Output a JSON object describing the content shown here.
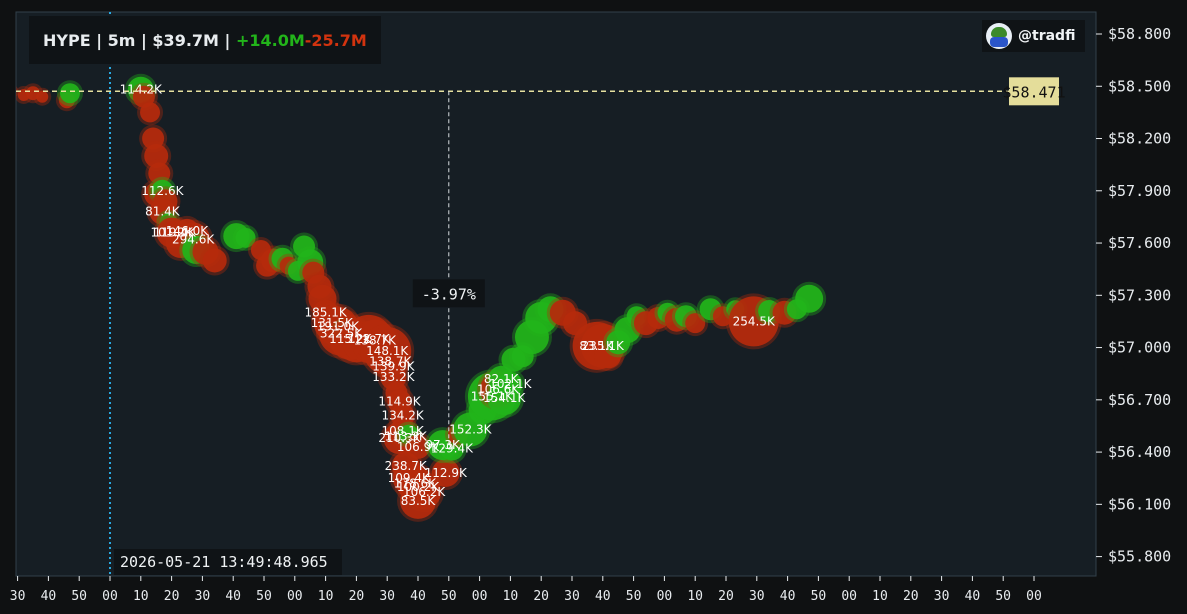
{
  "header": {
    "symbol": "HYPE",
    "sep1": " | ",
    "interval": "5m",
    "sep2": " | ",
    "volume": "$39.7M",
    "sep3": " | ",
    "buy_volume": "+14.0M",
    "sell_volume": "-25.7M"
  },
  "handle": "@tradfi",
  "colors": {
    "background": "#0f1112",
    "plot_background": "#161e24",
    "buy": "#22b41a",
    "sell": "#b52a0c",
    "price_line": "#e6e1a0",
    "price_badge": "#e4dd9a",
    "cursor_line": "#2aa8e0",
    "axis_text": "#e8ecef"
  },
  "chart_data": {
    "type": "scatter",
    "x_unit": "minute:second",
    "ylim": [
      55.8,
      58.9
    ],
    "y_ticks": [
      "$55.800",
      "$56.100",
      "$56.400",
      "$56.700",
      "$57.000",
      "$57.300",
      "$57.600",
      "$57.900",
      "$58.200",
      "$58.500",
      "$58.800"
    ],
    "y_tick_values": [
      55.8,
      56.1,
      56.4,
      56.7,
      57.0,
      57.3,
      57.6,
      57.9,
      58.2,
      58.5,
      58.8
    ],
    "x_ticks": [
      "20",
      "30",
      "40",
      "50",
      "00",
      "10",
      "20",
      "30",
      "40",
      "50",
      "00",
      "10",
      "20",
      "30",
      "40",
      "50",
      "00",
      "10",
      "20",
      "30",
      "40",
      "50",
      "00",
      "10",
      "20",
      "30",
      "40",
      "50",
      "00",
      "10",
      "20",
      "30",
      "40",
      "50",
      "00"
    ],
    "x_tick_start": -40,
    "x_tick_step": 10,
    "x_range_seconds": [
      -42,
      306
    ],
    "current_price": {
      "value": 58.471,
      "label": "$58.471"
    },
    "cursor": {
      "x": 0,
      "label": "2026-05-21 13:49:48.965"
    },
    "drawdown": {
      "x": 110,
      "y_from": 58.471,
      "label": "-3.97%",
      "label_y": 57.3
    },
    "trades": [
      {
        "t": -40,
        "p": 58.48,
        "side": "sell",
        "s": 4
      },
      {
        "t": -36,
        "p": 58.47,
        "side": "sell",
        "s": 5
      },
      {
        "t": -32,
        "p": 58.47,
        "side": "sell",
        "s": 4
      },
      {
        "t": -28,
        "p": 58.45,
        "side": "sell",
        "s": 6
      },
      {
        "t": -25,
        "p": 58.46,
        "side": "sell",
        "s": 7
      },
      {
        "t": -22,
        "p": 58.44,
        "side": "sell",
        "s": 6
      },
      {
        "t": -14,
        "p": 58.42,
        "side": "sell",
        "s": 8
      },
      {
        "t": -13,
        "p": 58.46,
        "side": "buy",
        "s": 10
      },
      {
        "t": 10,
        "p": 58.48,
        "side": "buy",
        "s": 13,
        "label": "114.2K"
      },
      {
        "t": 11,
        "p": 58.44,
        "side": "sell",
        "s": 11
      },
      {
        "t": 13,
        "p": 58.35,
        "side": "sell",
        "s": 10
      },
      {
        "t": 14,
        "p": 58.2,
        "side": "sell",
        "s": 11
      },
      {
        "t": 15,
        "p": 58.1,
        "side": "sell",
        "s": 12
      },
      {
        "t": 16,
        "p": 58.0,
        "side": "sell",
        "s": 11
      },
      {
        "t": 15,
        "p": 57.88,
        "side": "sell",
        "s": 12
      },
      {
        "t": 17,
        "p": 57.9,
        "side": "buy",
        "s": 11,
        "label": "112.6K"
      },
      {
        "t": 18,
        "p": 57.84,
        "side": "sell",
        "s": 12
      },
      {
        "t": 17,
        "p": 57.78,
        "side": "sell",
        "s": 13,
        "label": "81.4K"
      },
      {
        "t": 19,
        "p": 57.72,
        "side": "buy",
        "s": 9
      },
      {
        "t": 20,
        "p": 57.66,
        "side": "sell",
        "s": 15,
        "label": "101.2K"
      },
      {
        "t": 21,
        "p": 57.66,
        "side": "sell",
        "s": 12,
        "label": "119.4K"
      },
      {
        "t": 23,
        "p": 57.6,
        "side": "sell",
        "s": 15
      },
      {
        "t": 25,
        "p": 57.67,
        "side": "sell",
        "s": 12,
        "label": "146.0K"
      },
      {
        "t": 27,
        "p": 57.62,
        "side": "sell",
        "s": 17,
        "label": "294.6K"
      },
      {
        "t": 28,
        "p": 57.56,
        "side": "buy",
        "s": 14
      },
      {
        "t": 31,
        "p": 57.55,
        "side": "sell",
        "s": 13
      },
      {
        "t": 34,
        "p": 57.5,
        "side": "sell",
        "s": 12
      },
      {
        "t": 41,
        "p": 57.64,
        "side": "buy",
        "s": 13
      },
      {
        "t": 44,
        "p": 57.63,
        "side": "buy",
        "s": 10
      },
      {
        "t": 49,
        "p": 57.56,
        "side": "sell",
        "s": 10
      },
      {
        "t": 51,
        "p": 57.47,
        "side": "sell",
        "s": 11
      },
      {
        "t": 53,
        "p": 57.5,
        "side": "sell",
        "s": 12
      },
      {
        "t": 56,
        "p": 57.51,
        "side": "buy",
        "s": 11
      },
      {
        "t": 58,
        "p": 57.47,
        "side": "sell",
        "s": 9
      },
      {
        "t": 61,
        "p": 57.44,
        "side": "buy",
        "s": 10
      },
      {
        "t": 63,
        "p": 57.58,
        "side": "buy",
        "s": 11
      },
      {
        "t": 65,
        "p": 57.49,
        "side": "buy",
        "s": 13
      },
      {
        "t": 66,
        "p": 57.43,
        "side": "sell",
        "s": 11
      },
      {
        "t": 68,
        "p": 57.35,
        "side": "sell",
        "s": 12
      },
      {
        "t": 69,
        "p": 57.28,
        "side": "sell",
        "s": 14
      },
      {
        "t": 70,
        "p": 57.2,
        "side": "sell",
        "s": 13,
        "label": "185.1K"
      },
      {
        "t": 72,
        "p": 57.14,
        "side": "sell",
        "s": 18,
        "label": "131.5K"
      },
      {
        "t": 74,
        "p": 57.12,
        "side": "sell",
        "s": 20,
        "label": "191.0K"
      },
      {
        "t": 75,
        "p": 57.08,
        "side": "sell",
        "s": 22,
        "label": "322.5K"
      },
      {
        "t": 76,
        "p": 57.1,
        "side": "buy",
        "s": 9
      },
      {
        "t": 78,
        "p": 57.05,
        "side": "sell",
        "s": 21,
        "label": "115.2K"
      },
      {
        "t": 80,
        "p": 57.03,
        "side": "sell",
        "s": 20
      },
      {
        "t": 84,
        "p": 57.05,
        "side": "sell",
        "s": 24,
        "label": "122.7K"
      },
      {
        "t": 86,
        "p": 57.04,
        "side": "sell",
        "s": 21,
        "label": "138.7K"
      },
      {
        "t": 90,
        "p": 56.98,
        "side": "sell",
        "s": 24,
        "label": "148.1K"
      },
      {
        "t": 91,
        "p": 56.92,
        "side": "sell",
        "s": 16,
        "label": "138.7K"
      },
      {
        "t": 92,
        "p": 56.89,
        "side": "sell",
        "s": 12,
        "label": "139.9K"
      },
      {
        "t": 92,
        "p": 56.83,
        "side": "sell",
        "s": 13,
        "label": "133.2K"
      },
      {
        "t": 93,
        "p": 56.74,
        "side": "sell",
        "s": 11
      },
      {
        "t": 94,
        "p": 56.69,
        "side": "sell",
        "s": 12,
        "label": "114.9K"
      },
      {
        "t": 95,
        "p": 56.61,
        "side": "sell",
        "s": 12,
        "label": "134.2K"
      },
      {
        "t": 95,
        "p": 56.52,
        "side": "sell",
        "s": 13,
        "label": "108.1K"
      },
      {
        "t": 94,
        "p": 56.48,
        "side": "sell",
        "s": 16,
        "label": "210.3K"
      },
      {
        "t": 96,
        "p": 56.49,
        "side": "sell",
        "s": 13,
        "label": "113.3K"
      },
      {
        "t": 97,
        "p": 56.5,
        "side": "buy",
        "s": 10
      },
      {
        "t": 100,
        "p": 56.43,
        "side": "sell",
        "s": 12,
        "label": "106.9K"
      },
      {
        "t": 96,
        "p": 56.32,
        "side": "sell",
        "s": 14,
        "label": "238.7K"
      },
      {
        "t": 97,
        "p": 56.25,
        "side": "sell",
        "s": 16,
        "label": "109.4K"
      },
      {
        "t": 99,
        "p": 56.22,
        "side": "sell",
        "s": 18,
        "label": "178.6K"
      },
      {
        "t": 100,
        "p": 56.2,
        "side": "sell",
        "s": 16,
        "label": "100.2K"
      },
      {
        "t": 102,
        "p": 56.17,
        "side": "sell",
        "s": 17,
        "label": "106.2K"
      },
      {
        "t": 100,
        "p": 56.12,
        "side": "sell",
        "s": 18,
        "label": "83.5K"
      },
      {
        "t": 109,
        "p": 56.28,
        "side": "sell",
        "s": 14,
        "label": "112.9K"
      },
      {
        "t": 108,
        "p": 56.44,
        "side": "buy",
        "s": 15,
        "label": "97.3K"
      },
      {
        "t": 111,
        "p": 56.42,
        "side": "buy",
        "s": 12,
        "label": "129.4K"
      },
      {
        "t": 113,
        "p": 56.5,
        "side": "sell",
        "s": 10
      },
      {
        "t": 117,
        "p": 56.53,
        "side": "buy",
        "s": 17,
        "label": "152.3K"
      },
      {
        "t": 121,
        "p": 56.64,
        "side": "buy",
        "s": 14
      },
      {
        "t": 124,
        "p": 56.72,
        "side": "buy",
        "s": 24,
        "label": "155.1K"
      },
      {
        "t": 126,
        "p": 56.76,
        "side": "sell",
        "s": 18,
        "label": "106.6K"
      },
      {
        "t": 127,
        "p": 56.82,
        "side": "buy",
        "s": 13,
        "label": "82.1K"
      },
      {
        "t": 128,
        "p": 56.71,
        "side": "buy",
        "s": 17,
        "label": "154.1K"
      },
      {
        "t": 130,
        "p": 56.79,
        "side": "buy",
        "s": 12,
        "label": "102.1K"
      },
      {
        "t": 131,
        "p": 56.93,
        "side": "buy",
        "s": 12
      },
      {
        "t": 134,
        "p": 56.95,
        "side": "buy",
        "s": 11
      },
      {
        "t": 137,
        "p": 57.06,
        "side": "buy",
        "s": 17
      },
      {
        "t": 140,
        "p": 57.17,
        "side": "buy",
        "s": 16
      },
      {
        "t": 143,
        "p": 57.22,
        "side": "buy",
        "s": 13
      },
      {
        "t": 147,
        "p": 57.2,
        "side": "sell",
        "s": 13
      },
      {
        "t": 151,
        "p": 57.14,
        "side": "sell",
        "s": 12
      },
      {
        "t": 158,
        "p": 57.01,
        "side": "sell",
        "s": 24,
        "label": "83.1K"
      },
      {
        "t": 160,
        "p": 57.01,
        "side": "sell",
        "s": 22,
        "label": "235.1K"
      },
      {
        "t": 162,
        "p": 56.95,
        "side": "sell",
        "s": 12
      },
      {
        "t": 165,
        "p": 57.03,
        "side": "buy",
        "s": 12
      },
      {
        "t": 168,
        "p": 57.1,
        "side": "buy",
        "s": 13
      },
      {
        "t": 171,
        "p": 57.18,
        "side": "buy",
        "s": 10
      },
      {
        "t": 174,
        "p": 57.14,
        "side": "sell",
        "s": 12
      },
      {
        "t": 178,
        "p": 57.17,
        "side": "sell",
        "s": 11
      },
      {
        "t": 181,
        "p": 57.2,
        "side": "buy",
        "s": 10
      },
      {
        "t": 184,
        "p": 57.16,
        "side": "sell",
        "s": 12
      },
      {
        "t": 187,
        "p": 57.18,
        "side": "buy",
        "s": 11
      },
      {
        "t": 190,
        "p": 57.14,
        "side": "sell",
        "s": 10
      },
      {
        "t": 195,
        "p": 57.22,
        "side": "buy",
        "s": 11
      },
      {
        "t": 199,
        "p": 57.18,
        "side": "sell",
        "s": 10
      },
      {
        "t": 203,
        "p": 57.22,
        "side": "buy",
        "s": 9
      },
      {
        "t": 209,
        "p": 57.15,
        "side": "sell",
        "s": 25,
        "label": "254.5K"
      },
      {
        "t": 214,
        "p": 57.21,
        "side": "buy",
        "s": 11
      },
      {
        "t": 219,
        "p": 57.2,
        "side": "sell",
        "s": 12
      },
      {
        "t": 223,
        "p": 57.22,
        "side": "buy",
        "s": 10
      },
      {
        "t": 227,
        "p": 57.28,
        "side": "buy",
        "s": 14
      }
    ]
  }
}
